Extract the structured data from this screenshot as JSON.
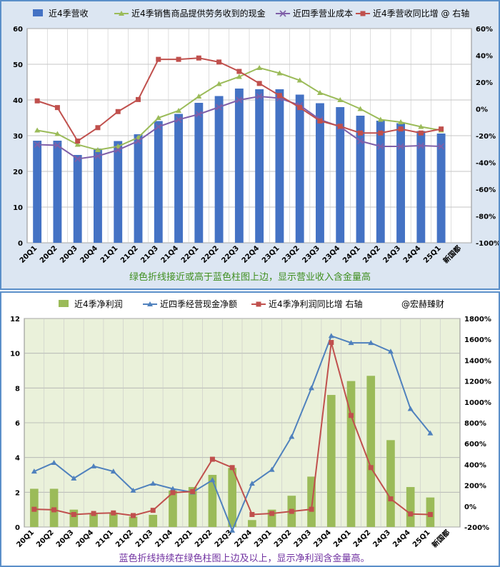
{
  "chart_data": [
    {
      "type": "bar",
      "categories": [
        "20Q1",
        "20Q2",
        "20Q3",
        "20Q4",
        "21Q1",
        "21Q2",
        "21Q3",
        "21Q4",
        "22Q1",
        "22Q2",
        "22Q3",
        "22Q4",
        "23Q1",
        "23Q2",
        "23Q3",
        "23Q4",
        "24Q1",
        "24Q2",
        "24Q3",
        "24Q4",
        "25Q1",
        "新国都"
      ],
      "ylim": [
        0,
        60
      ],
      "y_ticks": [
        "0",
        "10",
        "20",
        "30",
        "40",
        "50",
        "60"
      ],
      "y2lim": [
        -100,
        60
      ],
      "y2_ticks": [
        "-100%",
        "-80%",
        "-60%",
        "-40%",
        "-20%",
        "0%",
        "20%",
        "40%",
        "60%"
      ],
      "grid": true,
      "legend_position": "top",
      "series": [
        {
          "name": "近4季营收",
          "kind": "bar",
          "axis": "left",
          "color": "#4472c4",
          "values": [
            28.6,
            28.6,
            24.6,
            26.4,
            28.5,
            30.4,
            34.1,
            36.1,
            39.2,
            41.1,
            43.2,
            43.0,
            43.0,
            41.5,
            39.1,
            38.0,
            35.6,
            34.2,
            33.5,
            31.3,
            30.6,
            null
          ]
        },
        {
          "name": "近4季销售商品提供劳务收到的现金",
          "kind": "line",
          "axis": "left",
          "color": "#9bbb59",
          "marker": "triangle",
          "values": [
            31.5,
            30.5,
            27.5,
            26.0,
            27.0,
            29.5,
            35.0,
            37.0,
            41.0,
            44.5,
            46.5,
            49.0,
            47.5,
            45.5,
            42.0,
            40.0,
            37.5,
            34.5,
            33.8,
            32.5,
            31.5,
            null
          ]
        },
        {
          "name": "近四季营业成本",
          "kind": "line",
          "axis": "left",
          "color": "#7f5fa8",
          "marker": "x",
          "values": [
            27.5,
            27.3,
            23.5,
            24.3,
            26.0,
            28.5,
            32.5,
            34.5,
            36.0,
            38.0,
            40.0,
            41.0,
            40.5,
            38.5,
            34.5,
            32.5,
            28.5,
            27.0,
            27.0,
            27.2,
            27.0,
            null
          ]
        },
        {
          "name": "近4季营收同比增 @ 右轴",
          "kind": "line",
          "axis": "right",
          "color": "#c0504d",
          "marker": "square",
          "values": [
            6,
            1,
            -24,
            -14,
            -2,
            7,
            37,
            37,
            38,
            35,
            28,
            19,
            10,
            1,
            -9,
            -13,
            -18,
            -18,
            -15,
            -18,
            -15,
            null
          ]
        }
      ],
      "annotation": "绿色折线接近或高于蓝色柱图上边，显示营业收入含金量高"
    },
    {
      "type": "bar",
      "categories": [
        "20Q1",
        "20Q2",
        "20Q3",
        "20Q4",
        "21Q1",
        "21Q2",
        "21Q3",
        "21Q4",
        "22Q1",
        "22Q2",
        "22Q3",
        "22Q4",
        "23Q1",
        "23Q2",
        "23Q3",
        "23Q4",
        "24Q1",
        "24Q2",
        "24Q3",
        "24Q4",
        "25Q1",
        "新国都"
      ],
      "ylim": [
        0,
        12
      ],
      "y_ticks": [
        "0",
        "2",
        "4",
        "6",
        "8",
        "10",
        "12"
      ],
      "y2lim": [
        -200,
        1800
      ],
      "y2_ticks": [
        "-200%",
        "0%",
        "200%",
        "400%",
        "600%",
        "800%",
        "1000%",
        "1200%",
        "1400%",
        "1600%",
        "1800%"
      ],
      "grid": true,
      "legend_position": "top",
      "series": [
        {
          "name": "近4季净利润",
          "kind": "bar",
          "axis": "left",
          "color": "#9bbb59",
          "values": [
            2.2,
            2.2,
            1.0,
            0.8,
            0.8,
            0.6,
            0.7,
            2.1,
            2.3,
            3.0,
            3.4,
            0.4,
            1.0,
            1.8,
            2.9,
            7.6,
            8.4,
            8.7,
            5.0,
            2.3,
            1.7,
            null
          ]
        },
        {
          "name": "近四季经营现金净额",
          "kind": "line",
          "axis": "left",
          "color": "#4f81bd",
          "marker": "triangle",
          "values": [
            3.2,
            3.7,
            2.8,
            3.5,
            3.2,
            2.1,
            2.5,
            2.2,
            2.0,
            2.7,
            -0.2,
            2.5,
            3.3,
            5.2,
            8.0,
            11.0,
            10.6,
            10.6,
            10.1,
            6.8,
            5.4,
            null
          ]
        },
        {
          "name": "近4季净利润同比增 右轴",
          "kind": "line",
          "axis": "right",
          "color": "#c0504d",
          "marker": "square",
          "values": [
            -30,
            -35,
            -80,
            -70,
            -65,
            -90,
            -40,
            130,
            140,
            450,
            370,
            -80,
            -70,
            -50,
            -30,
            1570,
            870,
            370,
            70,
            -75,
            -80,
            null
          ]
        }
      ],
      "watermark_text": "@宏赫臻财",
      "annotation": "蓝色折线持续在绿色柱图上边及以上，显示净利润含金量高。"
    }
  ]
}
